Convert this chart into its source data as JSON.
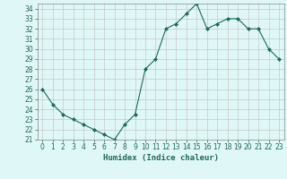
{
  "x": [
    0,
    1,
    2,
    3,
    4,
    5,
    6,
    7,
    8,
    9,
    10,
    11,
    12,
    13,
    14,
    15,
    16,
    17,
    18,
    19,
    20,
    21,
    22,
    23
  ],
  "y": [
    26,
    24.5,
    23.5,
    23,
    22.5,
    22,
    21.5,
    21,
    22.5,
    23.5,
    28,
    29,
    32,
    32.5,
    33.5,
    34.5,
    32,
    32.5,
    33,
    33,
    32,
    32,
    30,
    29
  ],
  "line_color": "#1a6b5a",
  "marker": "D",
  "marker_size": 2,
  "bg_color": "#e0f7f7",
  "grid_color": "#c8c8c8",
  "xlabel": "Humidex (Indice chaleur)",
  "ylim": [
    21,
    34.5
  ],
  "xlim": [
    -0.5,
    23.5
  ],
  "yticks": [
    21,
    22,
    23,
    24,
    25,
    26,
    27,
    28,
    29,
    30,
    31,
    32,
    33,
    34
  ],
  "xticks": [
    0,
    1,
    2,
    3,
    4,
    5,
    6,
    7,
    8,
    9,
    10,
    11,
    12,
    13,
    14,
    15,
    16,
    17,
    18,
    19,
    20,
    21,
    22,
    23
  ],
  "tick_fontsize": 5.5,
  "xlabel_fontsize": 6.5
}
